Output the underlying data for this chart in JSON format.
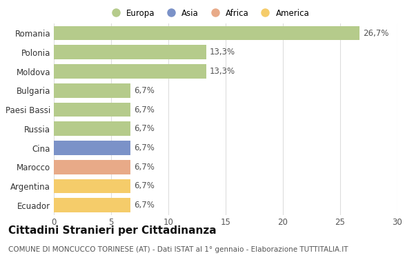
{
  "categories": [
    "Romania",
    "Polonia",
    "Moldova",
    "Bulgaria",
    "Paesi Bassi",
    "Russia",
    "Cina",
    "Marocco",
    "Argentina",
    "Ecuador"
  ],
  "values": [
    26.7,
    13.3,
    13.3,
    6.7,
    6.7,
    6.7,
    6.7,
    6.7,
    6.7,
    6.7
  ],
  "labels": [
    "26,7%",
    "13,3%",
    "13,3%",
    "6,7%",
    "6,7%",
    "6,7%",
    "6,7%",
    "6,7%",
    "6,7%",
    "6,7%"
  ],
  "colors": [
    "#b5cb8b",
    "#b5cb8b",
    "#b5cb8b",
    "#b5cb8b",
    "#b5cb8b",
    "#b5cb8b",
    "#7b92c8",
    "#e8aa88",
    "#f5cc6a",
    "#f5cc6a"
  ],
  "legend": [
    {
      "label": "Europa",
      "color": "#b5cb8b"
    },
    {
      "label": "Asia",
      "color": "#7b92c8"
    },
    {
      "label": "Africa",
      "color": "#e8aa88"
    },
    {
      "label": "America",
      "color": "#f5cc6a"
    }
  ],
  "xlim": [
    0,
    30
  ],
  "xticks": [
    0,
    5,
    10,
    15,
    20,
    25,
    30
  ],
  "title": "Cittadini Stranieri per Cittadinanza",
  "subtitle": "COMUNE DI MONCUCCO TORINESE (AT) - Dati ISTAT al 1° gennaio - Elaborazione TUTTITALIA.IT",
  "background_color": "#ffffff",
  "grid_color": "#dddddd",
  "bar_height": 0.75,
  "label_fontsize": 8.5,
  "tick_fontsize": 8.5,
  "title_fontsize": 11,
  "subtitle_fontsize": 7.5
}
